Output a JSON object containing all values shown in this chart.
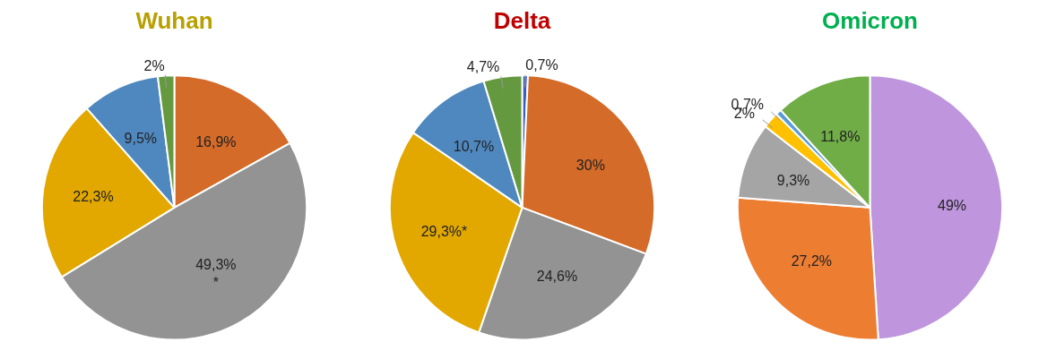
{
  "chart_data": [
    {
      "type": "pie",
      "title": "Wuhan",
      "categories": [
        null,
        null,
        null,
        null,
        null
      ],
      "values": [
        16.9,
        49.3,
        22.3,
        9.5,
        2
      ],
      "colors": [
        "#d46b29",
        "#939393",
        "#e2a800",
        "#4f88bf",
        "#65993f"
      ],
      "value_labels": [
        "16,9%",
        "49,3%\n*",
        "22,3%",
        "9,5%",
        "2%"
      ]
    },
    {
      "type": "pie",
      "title": "Delta",
      "categories": [
        null,
        null,
        null,
        null,
        null,
        null
      ],
      "values": [
        0.7,
        30,
        24.6,
        29.3,
        10.7,
        4.7
      ],
      "colors": [
        "#3a5ec0",
        "#d46b29",
        "#939393",
        "#e2a800",
        "#4f88bf",
        "#65993f"
      ],
      "value_labels": [
        "0,7%",
        "30%",
        "24,6%",
        "29,3%*",
        "10,7%",
        "4,7%"
      ]
    },
    {
      "type": "pie",
      "title": "Omicron",
      "categories": [
        null,
        null,
        null,
        null,
        null,
        null
      ],
      "values": [
        49,
        27.2,
        9.3,
        2,
        0.7,
        11.8
      ],
      "colors": [
        "#bf96de",
        "#ed7d31",
        "#a5a5a5",
        "#ffc000",
        "#5b9bd5",
        "#70ad47"
      ],
      "value_labels": [
        "49%",
        "27,2%",
        "9,3%",
        "2%",
        "0,7%",
        "11,8%"
      ]
    }
  ]
}
